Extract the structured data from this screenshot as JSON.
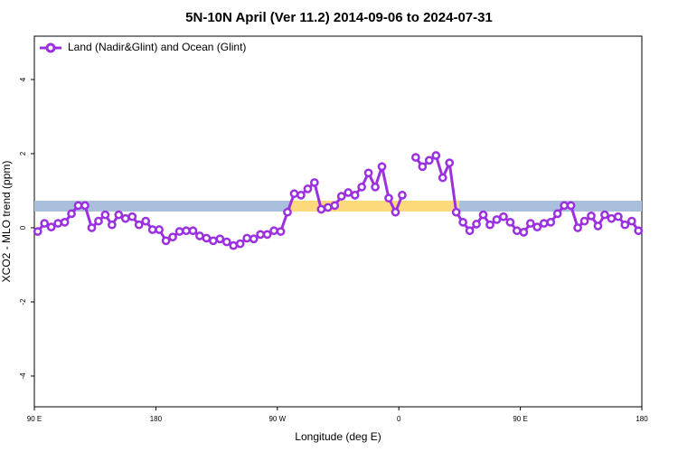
{
  "chart_data": {
    "type": "line",
    "title": "5N-10N April (Ver 11.2)   2014-09-06 to 2024-07-31",
    "x_label": "Longitude (deg E)",
    "y_label": "XCO2 - MLO trend (ppm)",
    "xlim": [
      90,
      540
    ],
    "xticks": [
      {
        "value": 90,
        "label": "90 E"
      },
      180,
      {
        "value": 270,
        "label": "90 W"
      },
      {
        "value": 360,
        "label": "0"
      },
      {
        "value": 450,
        "label": "90 E"
      },
      {
        "value": 540,
        "label": "180"
      }
    ],
    "ylim": [
      -4.83,
      5.17
    ],
    "yticks": [
      -4,
      -2,
      0,
      2,
      4
    ],
    "legend_position": "upper left",
    "x": [
      92.5,
      97.5,
      102.5,
      107.5,
      112.5,
      117.5,
      122.5,
      127.5,
      132.5,
      137.5,
      142.5,
      147.5,
      152.5,
      157.5,
      162.5,
      167.5,
      172.5,
      177.5,
      182.5,
      187.5,
      192.5,
      197.5,
      202.5,
      207.5,
      212.5,
      217.5,
      222.5,
      227.5,
      232.5,
      237.5,
      242.5,
      247.5,
      252.5,
      257.5,
      262.5,
      267.5,
      272.5,
      277.5,
      282.5,
      287.5,
      292.5,
      297.5,
      302.5,
      307.5,
      312.5,
      317.5,
      322.5,
      327.5,
      332.5,
      337.5,
      342.5,
      347.5,
      352.5,
      357.5,
      362.5,
      367.5,
      372.5,
      377.5,
      382.5,
      387.5,
      392.5,
      397.5,
      402.5,
      407.5,
      412.5,
      417.5,
      422.5,
      427.5,
      432.5,
      437.5,
      442.5,
      447.5,
      452.5,
      457.5,
      462.5,
      467.5,
      472.5,
      477.5,
      482.5,
      487.5,
      492.5,
      497.5,
      502.5,
      507.5,
      512.5,
      517.5,
      522.5,
      527.5,
      532.5,
      537.5
    ],
    "series": [
      {
        "name": "Land (Nadir&Glint) and Ocean (Glint)",
        "color": "#9b30e0",
        "values": [
          -0.1,
          0.12,
          0.02,
          0.12,
          0.15,
          0.38,
          0.6,
          0.6,
          0.0,
          0.18,
          0.35,
          0.08,
          0.35,
          0.25,
          0.3,
          0.08,
          0.18,
          -0.05,
          -0.05,
          -0.35,
          -0.25,
          -0.1,
          -0.08,
          -0.08,
          -0.22,
          -0.28,
          -0.35,
          -0.3,
          -0.38,
          -0.48,
          -0.43,
          -0.28,
          -0.3,
          -0.18,
          -0.18,
          -0.08,
          -0.1,
          0.42,
          0.92,
          0.88,
          1.05,
          1.22,
          0.5,
          0.55,
          0.6,
          0.85,
          0.95,
          0.88,
          1.1,
          1.48,
          1.1,
          1.65,
          0.8,
          0.42,
          0.88,
          null,
          1.9,
          1.65,
          1.82,
          1.95,
          1.35,
          1.75,
          0.42,
          0.15,
          -0.08,
          0.1,
          0.35,
          0.08,
          0.22,
          0.3,
          0.15,
          -0.08,
          -0.12,
          0.12,
          0.02,
          0.12,
          0.15,
          0.38,
          0.6,
          0.6,
          0.0,
          0.18,
          0.32,
          0.05,
          0.35,
          0.25,
          0.3,
          0.08,
          0.18,
          -0.08
        ]
      }
    ]
  }
}
